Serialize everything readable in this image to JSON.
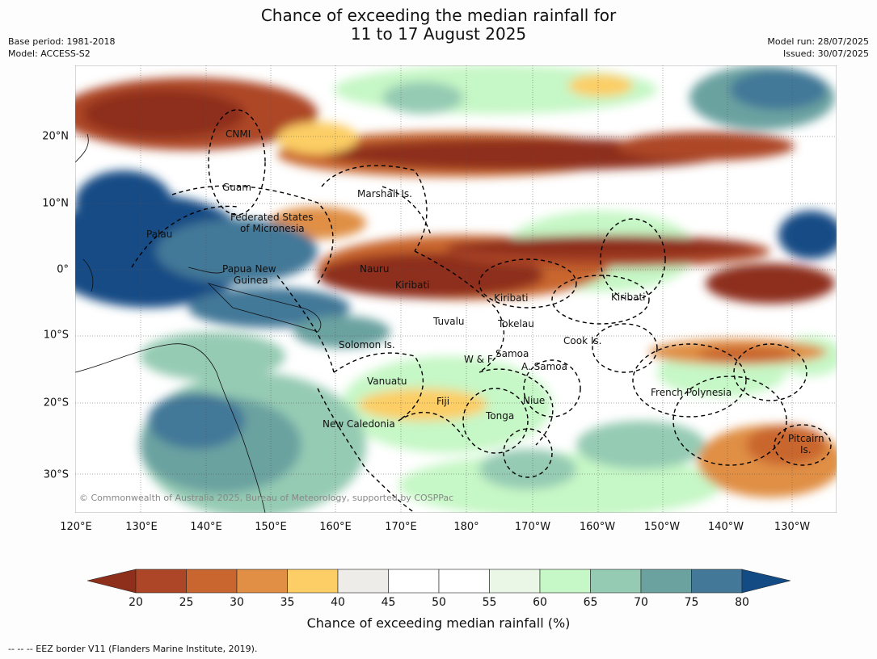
{
  "header": {
    "title_line1": "Chance of exceeding the median rainfall for",
    "title_line2": "11 to 17 August 2025",
    "base_period": "Base period: 1981-2018",
    "model": "Model: ACCESS-S2",
    "model_run": "Model run: 28/07/2025",
    "issued": "Issued: 30/07/2025"
  },
  "map": {
    "lat_ticks": [
      "20°N",
      "10°N",
      "0°",
      "10°S",
      "20°S",
      "30°S"
    ],
    "lon_ticks": [
      "120°E",
      "130°E",
      "140°E",
      "150°E",
      "160°E",
      "170°E",
      "180°",
      "170°W",
      "160°W",
      "150°W",
      "140°W",
      "130°W"
    ],
    "regions": [
      "CNMI",
      "Guam",
      "Marshall Is.",
      "Federated States",
      "of Micronesia",
      "Palau",
      "Nauru",
      "Papua New",
      "Guinea",
      "Kiribati",
      "Kiribati",
      "Kiribati",
      "Tuvalu",
      "Tokelau",
      "Cook Is.",
      "Solomon Is.",
      "Samoa",
      "W & F",
      "A. Samoa",
      "Vanuatu",
      "Fiji",
      "Niue",
      "French Polynesia",
      "Tonga",
      "New Caledonia",
      "Pitcairn",
      "Is."
    ],
    "copyright": "© Commonwealth of Australia 2025, Bureau of Meteorology, supported by COSPPac"
  },
  "colorbar": {
    "ticks": [
      "20",
      "25",
      "30",
      "35",
      "40",
      "45",
      "50",
      "55",
      "60",
      "65",
      "70",
      "75",
      "80"
    ],
    "colors": [
      "#8e2f1b",
      "#ad4626",
      "#c9662f",
      "#e08f44",
      "#fcce65",
      "#eeece8",
      "#ffffff",
      "#ffffff",
      "#eaf7e7",
      "#c6f7c6",
      "#95cbb3",
      "#6ba2a0",
      "#437898",
      "#134c85"
    ],
    "label": "Chance of exceeding median rainfall (%)"
  },
  "footnote": "--  --  -- EEZ border V11 (Flanders Marine Institute, 2019)."
}
